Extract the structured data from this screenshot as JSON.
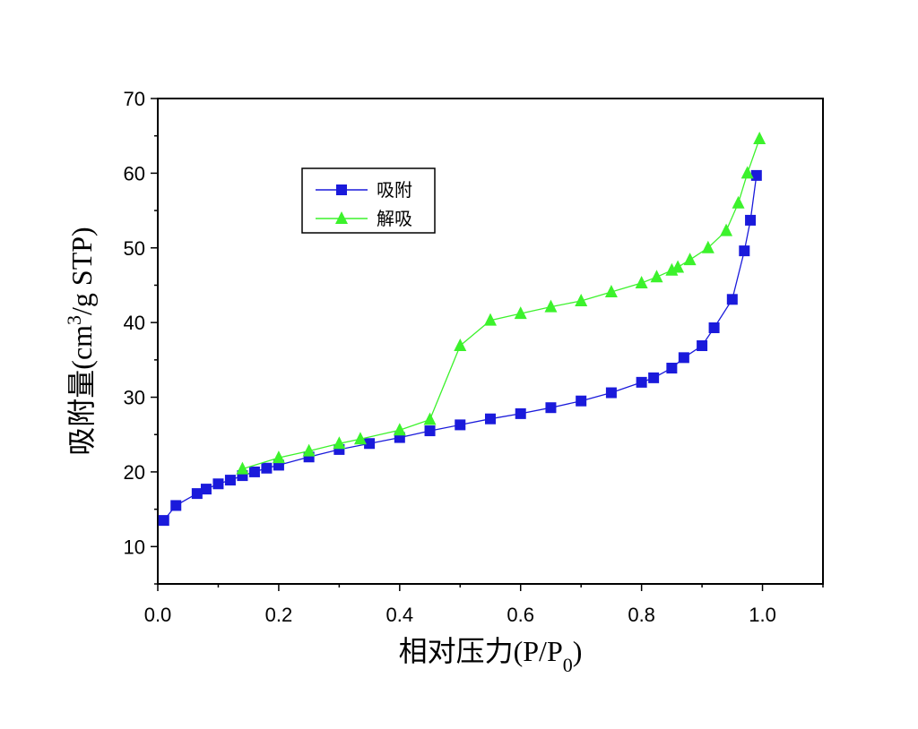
{
  "chart_data": {
    "type": "line",
    "xlabel": "相对压力(P/P",
    "xlabel_sub": "0",
    "xlabel_close": ")",
    "ylabel": "吸附量(cm",
    "ylabel_sup": "3",
    "ylabel_rest": "/g STP)",
    "xlim": [
      0.0,
      1.1
    ],
    "ylim": [
      5,
      70
    ],
    "x_ticks": [
      "0.0",
      "0.2",
      "0.4",
      "0.6",
      "0.8",
      "1.0"
    ],
    "y_ticks": [
      "10",
      "20",
      "30",
      "40",
      "50",
      "60",
      "70"
    ],
    "legend_position": "upper-left-inside",
    "grid": false,
    "series": [
      {
        "name": "吸附",
        "color": "#1a1adb",
        "marker": "square",
        "x": [
          0.01,
          0.03,
          0.065,
          0.08,
          0.1,
          0.12,
          0.14,
          0.16,
          0.18,
          0.2,
          0.25,
          0.3,
          0.35,
          0.4,
          0.45,
          0.5,
          0.55,
          0.6,
          0.65,
          0.7,
          0.75,
          0.8,
          0.82,
          0.85,
          0.87,
          0.9,
          0.92,
          0.95,
          0.97,
          0.98,
          0.99
        ],
        "y": [
          13.5,
          15.5,
          17.1,
          17.7,
          18.4,
          18.9,
          19.5,
          20.0,
          20.5,
          20.9,
          22.0,
          23.0,
          23.8,
          24.6,
          25.5,
          26.3,
          27.1,
          27.8,
          28.6,
          29.5,
          30.6,
          32.0,
          32.6,
          33.9,
          35.3,
          36.9,
          39.3,
          43.1,
          49.6,
          53.7,
          59.7
        ]
      },
      {
        "name": "解吸",
        "color": "#3cf22c",
        "marker": "triangle",
        "x": [
          0.14,
          0.2,
          0.25,
          0.3,
          0.335,
          0.4,
          0.45,
          0.5,
          0.55,
          0.6,
          0.65,
          0.7,
          0.75,
          0.8,
          0.825,
          0.85,
          0.86,
          0.88,
          0.91,
          0.94,
          0.96,
          0.975,
          0.995
        ],
        "y": [
          20.4,
          21.9,
          22.8,
          23.8,
          24.4,
          25.6,
          27.0,
          36.9,
          40.3,
          41.2,
          42.1,
          42.9,
          44.1,
          45.3,
          46.1,
          47.0,
          47.4,
          48.4,
          50.0,
          52.3,
          56.0,
          60.0,
          64.6
        ]
      }
    ]
  }
}
